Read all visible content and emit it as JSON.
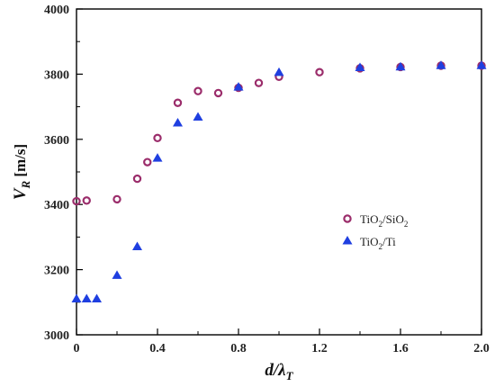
{
  "chart_data": {
    "type": "scatter",
    "title": "",
    "xlabel": "d/λT",
    "ylabel": "VR [m/s]",
    "xlim": [
      0,
      2.0
    ],
    "ylim": [
      3000,
      4000
    ],
    "xticks": [
      "0",
      "0.4",
      "0.8",
      "1.2",
      "1.6",
      "2.0"
    ],
    "yticks": [
      "3000",
      "3200",
      "3400",
      "3600",
      "3800",
      "4000"
    ],
    "grid": false,
    "legend_position": "middle-right",
    "series": [
      {
        "name": "TiO2/SiO2",
        "marker": "open-circle",
        "color": "#9b2d6b",
        "x": [
          0.0,
          0.05,
          0.2,
          0.3,
          0.35,
          0.4,
          0.5,
          0.6,
          0.7,
          0.8,
          0.9,
          1.0,
          1.2,
          1.4,
          1.6,
          1.8,
          2.0
        ],
        "y": [
          3410,
          3412,
          3416,
          3479,
          3530,
          3604,
          3712,
          3748,
          3742,
          3758,
          3773,
          3792,
          3806,
          3818,
          3822,
          3826,
          3826
        ]
      },
      {
        "name": "TiO2/Ti",
        "marker": "filled-triangle",
        "color": "#1f3fe0",
        "x": [
          0.0,
          0.05,
          0.1,
          0.2,
          0.3,
          0.4,
          0.5,
          0.6,
          0.8,
          1.0,
          1.4,
          1.6,
          1.8,
          2.0
        ],
        "y": [
          3110,
          3110,
          3110,
          3182,
          3270,
          3542,
          3650,
          3668,
          3760,
          3805,
          3820,
          3822,
          3826,
          3826
        ]
      }
    ]
  },
  "legend": {
    "entries": [
      {
        "base": "TiO",
        "sub1": "2",
        "mid": "/SiO",
        "sub2": "2"
      },
      {
        "base": "TiO",
        "sub1": "2",
        "mid": "/Ti",
        "sub2": ""
      }
    ]
  },
  "axis_titles": {
    "y_main": "V",
    "y_sub": "R",
    "y_unit": " [m/s]",
    "x_main": "d/λ",
    "x_sub": "T"
  }
}
